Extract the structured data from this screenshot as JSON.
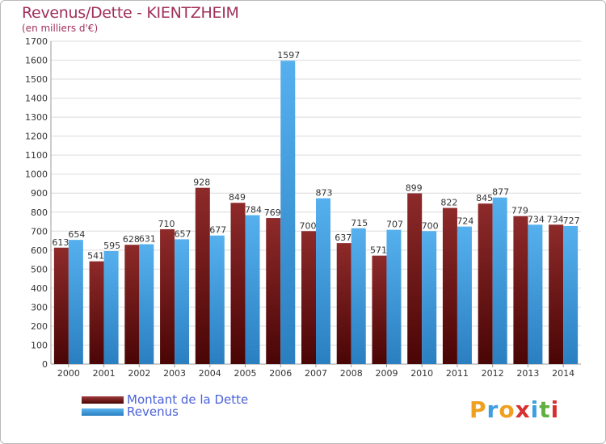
{
  "chart_data": {
    "type": "bar",
    "title": "Revenus/Dette - KIENTZHEIM",
    "subtitle": "(en milliers d'€)",
    "xlabel": "",
    "ylabel": "",
    "ylim": [
      0,
      1700
    ],
    "yticks": [
      0,
      100,
      200,
      300,
      400,
      500,
      600,
      700,
      800,
      900,
      1000,
      1100,
      1200,
      1300,
      1400,
      1500,
      1600,
      1700
    ],
    "grid": true,
    "categories": [
      "2000",
      "2001",
      "2002",
      "2003",
      "2004",
      "2005",
      "2006",
      "2007",
      "2008",
      "2009",
      "2010",
      "2011",
      "2012",
      "2013",
      "2014"
    ],
    "series": [
      {
        "name": "Montant de la Dette",
        "color": "#7a1b1b",
        "values": [
          613,
          541,
          628,
          710,
          928,
          849,
          769,
          700,
          637,
          571,
          899,
          822,
          845,
          779,
          734
        ]
      },
      {
        "name": "Revenus",
        "color": "#3d9ee0",
        "values": [
          654,
          595,
          631,
          657,
          677,
          784,
          1597,
          873,
          715,
          707,
          700,
          724,
          877,
          734,
          727
        ]
      }
    ],
    "legend": "bottom-left"
  },
  "logo": {
    "text": "Proxiti",
    "letters": [
      "P",
      "r",
      "o",
      "x",
      "i",
      "t",
      "i"
    ],
    "colors": [
      "#f0a020",
      "#3d9ee0",
      "#f0a020",
      "#d83030",
      "#3d9ee0",
      "#60b040",
      "#d83030"
    ]
  }
}
